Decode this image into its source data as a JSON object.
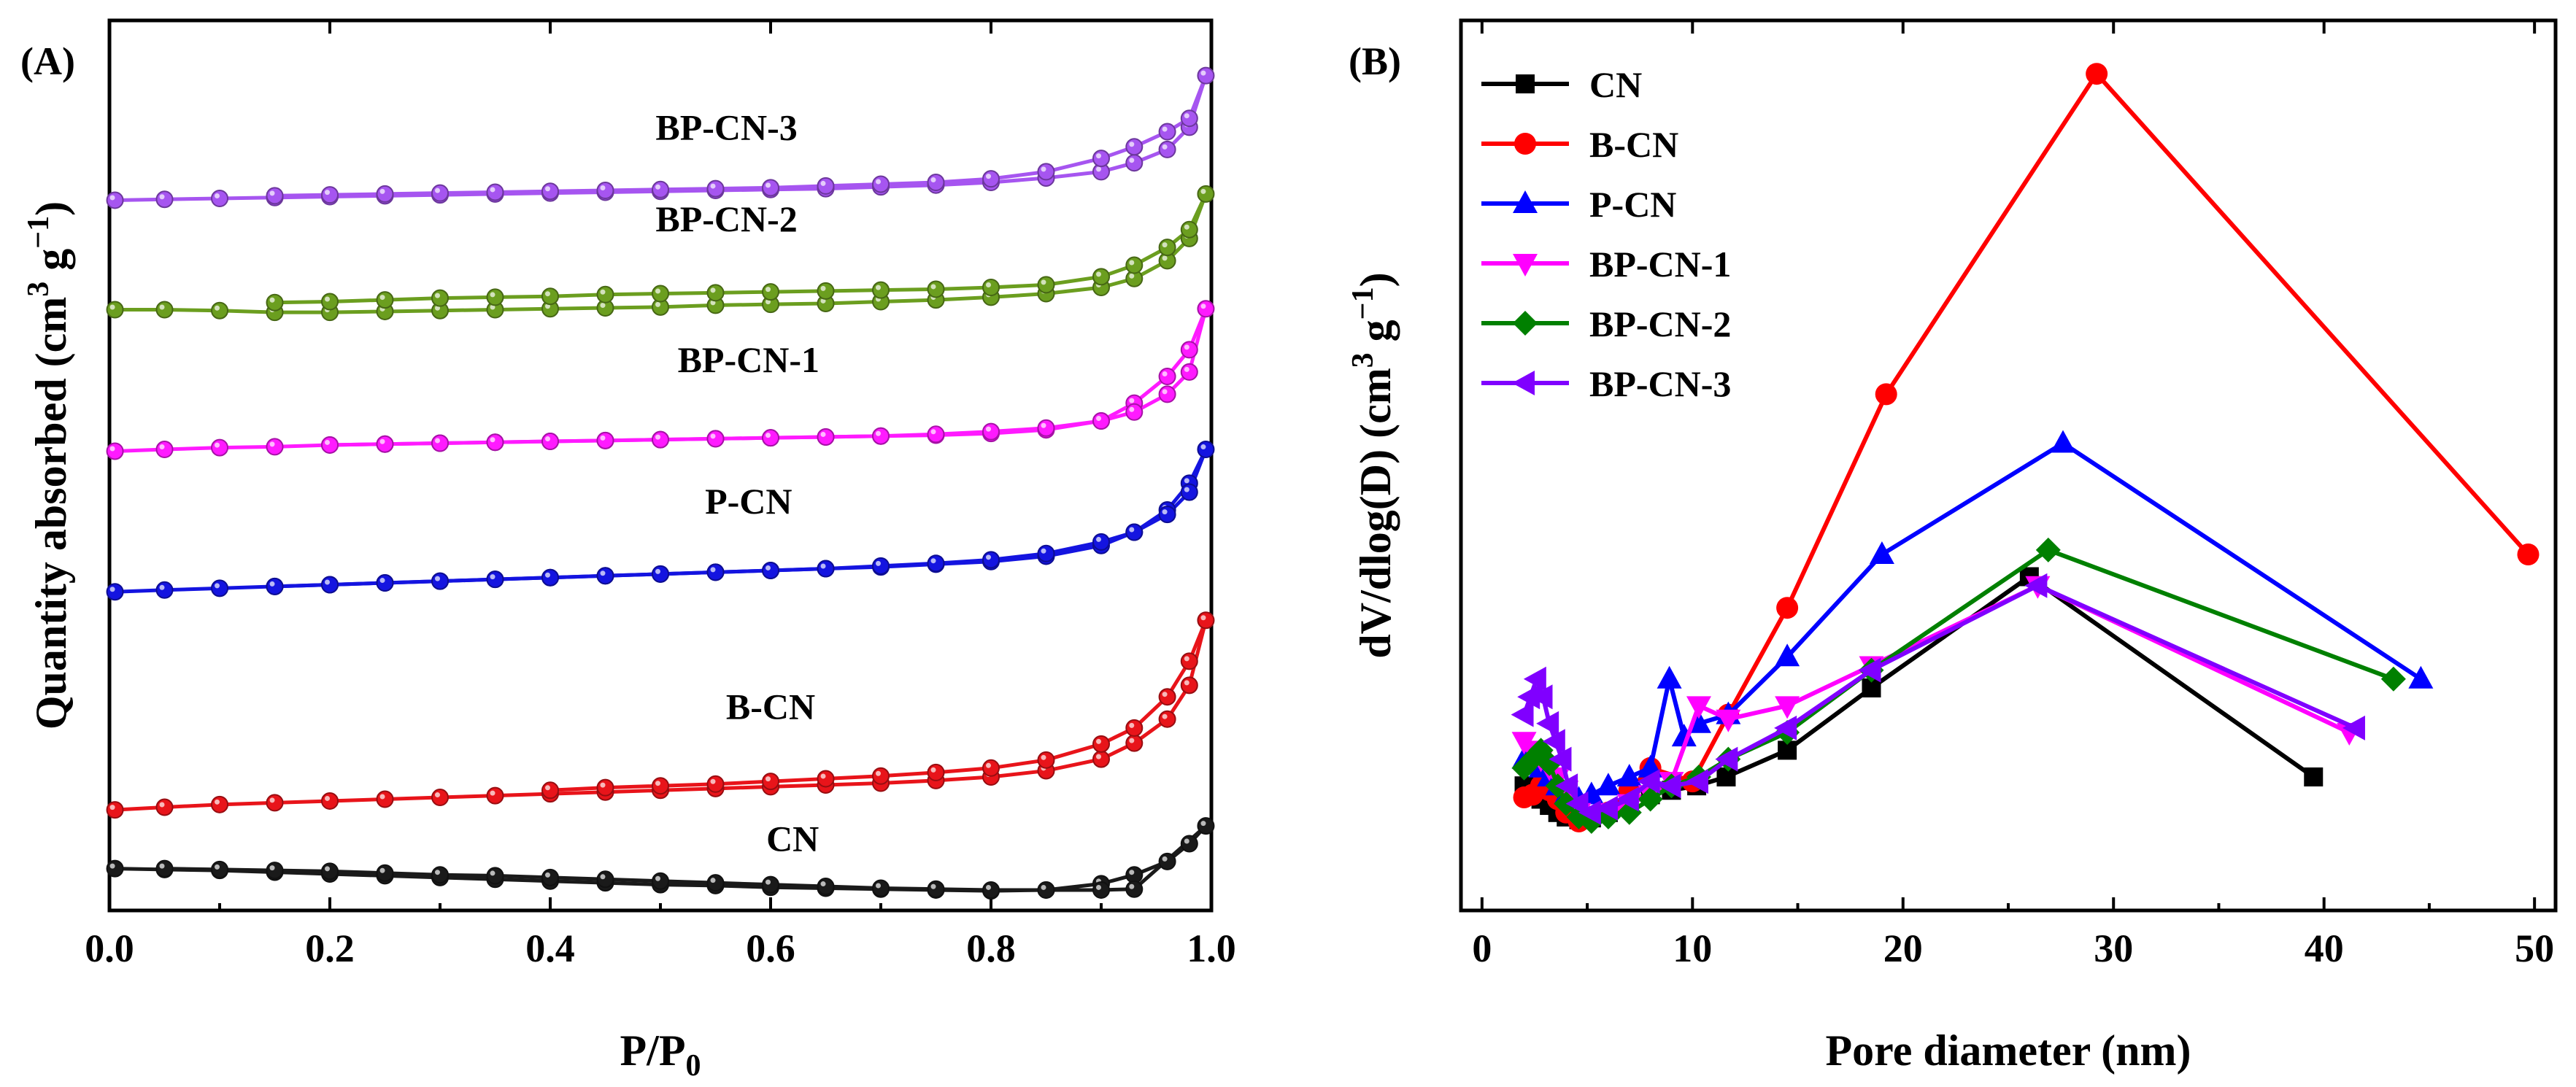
{
  "chart_data": [
    {
      "panel_label": "(A)",
      "type": "line",
      "title": "",
      "xlabel": {
        "main": "P/P",
        "sub": "0"
      },
      "ylabel": {
        "main": "Quantity absorbed (cm",
        "sup1": "3",
        "mid": " g",
        "sup2": "−1",
        "end": ")"
      },
      "xlim": [
        0,
        1
      ],
      "ylim": [
        0,
        100
      ],
      "yticks_shown": false,
      "xtick_labels": [
        "0.0",
        "0.2",
        "0.4",
        "0.6",
        "0.8",
        "1.0"
      ],
      "xtick_values": [
        0,
        0.2,
        0.4,
        0.6,
        0.8,
        1.0
      ],
      "marker": "ball",
      "series": [
        {
          "name": "CN",
          "label": "CN",
          "color": "#1a1a1a",
          "label_at": [
            0.62,
            6.7
          ],
          "x": [
            0.005,
            0.05,
            0.1,
            0.15,
            0.2,
            0.25,
            0.3,
            0.35,
            0.4,
            0.45,
            0.5,
            0.55,
            0.6,
            0.65,
            0.7,
            0.75,
            0.8,
            0.85,
            0.9,
            0.93,
            0.96,
            0.98,
            0.995
          ],
          "y": [
            4.7,
            4.6,
            4.5,
            4.3,
            4.1,
            3.9,
            3.7,
            3.5,
            3.3,
            3.1,
            2.9,
            2.8,
            2.6,
            2.5,
            2.4,
            2.3,
            2.2,
            2.3,
            3.0,
            4.0,
            5.5,
            7.5,
            9.5
          ],
          "desorption_x": [
            0.93,
            0.9,
            0.85,
            0.8,
            0.75,
            0.7,
            0.65,
            0.6,
            0.55,
            0.5,
            0.45,
            0.4,
            0.35,
            0.3,
            0.25,
            0.2,
            0.15,
            0.1,
            0.05
          ],
          "desorption_y": [
            2.4,
            2.3,
            2.3,
            2.3,
            2.4,
            2.5,
            2.7,
            2.9,
            3.1,
            3.3,
            3.5,
            3.7,
            3.9,
            4.0,
            4.2,
            4.4,
            4.5,
            4.6,
            4.7
          ]
        },
        {
          "name": "B-CN",
          "label": "B-CN",
          "color": "#e8141a",
          "label_at": [
            0.6,
            21.5
          ],
          "x": [
            0.005,
            0.05,
            0.1,
            0.15,
            0.2,
            0.25,
            0.3,
            0.35,
            0.4,
            0.45,
            0.5,
            0.55,
            0.6,
            0.65,
            0.7,
            0.75,
            0.8,
            0.85,
            0.9,
            0.93,
            0.96,
            0.98,
            0.995
          ],
          "y": [
            11.3,
            11.6,
            11.9,
            12.1,
            12.3,
            12.5,
            12.7,
            12.9,
            13.1,
            13.3,
            13.5,
            13.7,
            13.9,
            14.1,
            14.3,
            14.6,
            15.0,
            15.7,
            17.0,
            18.8,
            21.5,
            25.3,
            32.6
          ],
          "desorption_x": [
            0.98,
            0.96,
            0.93,
            0.9,
            0.85,
            0.8,
            0.75,
            0.7,
            0.65,
            0.6,
            0.55,
            0.5,
            0.45,
            0.4
          ],
          "desorption_y": [
            28.0,
            24.0,
            20.5,
            18.7,
            16.9,
            16.0,
            15.5,
            15.1,
            14.8,
            14.5,
            14.2,
            14.0,
            13.8,
            13.5
          ]
        },
        {
          "name": "P-CN",
          "label": "P-CN",
          "color": "#1414e0",
          "label_at": [
            0.58,
            44.6
          ],
          "x": [
            0.005,
            0.05,
            0.1,
            0.15,
            0.2,
            0.25,
            0.3,
            0.35,
            0.4,
            0.45,
            0.5,
            0.55,
            0.6,
            0.65,
            0.7,
            0.75,
            0.8,
            0.85,
            0.9,
            0.93,
            0.96,
            0.98,
            0.995
          ],
          "y": [
            35.8,
            36.0,
            36.2,
            36.4,
            36.6,
            36.8,
            37.0,
            37.2,
            37.4,
            37.6,
            37.8,
            38.0,
            38.2,
            38.4,
            38.6,
            38.9,
            39.2,
            39.8,
            41.0,
            42.5,
            45.0,
            48.0,
            51.8
          ],
          "desorption_x": [
            0.98,
            0.96,
            0.93,
            0.9,
            0.85,
            0.8,
            0.75,
            0.7,
            0.65,
            0.6,
            0.55,
            0.5,
            0.45,
            0.4,
            0.35,
            0.3,
            0.25,
            0.2,
            0.15
          ],
          "desorption_y": [
            47.0,
            44.5,
            42.5,
            41.4,
            40.1,
            39.4,
            39.0,
            38.7,
            38.4,
            38.2,
            38.0,
            37.8,
            37.6,
            37.4,
            37.2,
            37.0,
            36.8,
            36.6,
            36.4
          ]
        },
        {
          "name": "BP-CN-1",
          "label": "BP-CN-1",
          "color": "#ff1aff",
          "label_at": [
            0.58,
            60.5
          ],
          "x": [
            0.005,
            0.05,
            0.1,
            0.15,
            0.2,
            0.25,
            0.3,
            0.35,
            0.4,
            0.45,
            0.5,
            0.55,
            0.6,
            0.65,
            0.7,
            0.75,
            0.8,
            0.85,
            0.9,
            0.93,
            0.96,
            0.98,
            0.995
          ],
          "y": [
            51.6,
            51.8,
            52.0,
            52.1,
            52.3,
            52.4,
            52.5,
            52.6,
            52.7,
            52.8,
            52.9,
            53.0,
            53.1,
            53.2,
            53.3,
            53.4,
            53.6,
            54.0,
            55.0,
            57.0,
            60.0,
            63.0,
            67.6
          ],
          "desorption_x": [
            0.98,
            0.96,
            0.93,
            0.9,
            0.85,
            0.8,
            0.75,
            0.7,
            0.65,
            0.6,
            0.55,
            0.5,
            0.45,
            0.4,
            0.35,
            0.3,
            0.25,
            0.2
          ],
          "desorption_y": [
            60.5,
            58.0,
            56.0,
            55.0,
            54.2,
            53.8,
            53.5,
            53.3,
            53.2,
            53.1,
            53.0,
            52.9,
            52.8,
            52.7,
            52.6,
            52.5,
            52.4,
            52.3
          ]
        },
        {
          "name": "BP-CN-2",
          "label": "BP-CN-2",
          "color": "#6b9e1f",
          "label_at": [
            0.56,
            76.3
          ],
          "x": [
            0.005,
            0.05,
            0.1,
            0.15,
            0.2,
            0.25,
            0.3,
            0.35,
            0.4,
            0.45,
            0.5,
            0.55,
            0.6,
            0.65,
            0.7,
            0.75,
            0.8,
            0.85,
            0.9,
            0.93,
            0.96,
            0.98,
            0.995
          ],
          "y": [
            67.5,
            67.5,
            67.4,
            67.2,
            67.2,
            67.3,
            67.4,
            67.5,
            67.6,
            67.7,
            67.8,
            68.0,
            68.1,
            68.2,
            68.4,
            68.6,
            68.9,
            69.3,
            70.0,
            71.0,
            73.0,
            75.5,
            80.5
          ],
          "desorption_x": [
            0.98,
            0.96,
            0.93,
            0.9,
            0.85,
            0.8,
            0.75,
            0.7,
            0.65,
            0.6,
            0.55,
            0.5,
            0.45,
            0.4,
            0.35,
            0.3,
            0.25,
            0.2,
            0.15
          ],
          "desorption_y": [
            76.5,
            74.5,
            72.5,
            71.2,
            70.3,
            70.0,
            69.8,
            69.7,
            69.6,
            69.5,
            69.4,
            69.3,
            69.2,
            69.0,
            68.9,
            68.8,
            68.6,
            68.4,
            68.3
          ]
        },
        {
          "name": "BP-CN-3",
          "label": "BP-CN-3",
          "color": "#a655f0",
          "label_at": [
            0.56,
            86.6
          ],
          "x": [
            0.005,
            0.05,
            0.1,
            0.15,
            0.2,
            0.25,
            0.3,
            0.35,
            0.4,
            0.45,
            0.5,
            0.55,
            0.6,
            0.65,
            0.7,
            0.75,
            0.8,
            0.85,
            0.9,
            0.93,
            0.96,
            0.98,
            0.995
          ],
          "y": [
            79.8,
            79.9,
            80.0,
            80.1,
            80.2,
            80.3,
            80.4,
            80.5,
            80.6,
            80.7,
            80.8,
            80.9,
            81.0,
            81.1,
            81.3,
            81.5,
            81.8,
            82.3,
            83.0,
            84.0,
            85.5,
            88.0,
            93.8
          ],
          "desorption_x": [
            0.98,
            0.96,
            0.93,
            0.9,
            0.85,
            0.8,
            0.75,
            0.7,
            0.65,
            0.6,
            0.55,
            0.5,
            0.45,
            0.4,
            0.35,
            0.3,
            0.25,
            0.2,
            0.15
          ],
          "desorption_y": [
            89.0,
            87.5,
            85.8,
            84.5,
            83.0,
            82.2,
            81.8,
            81.6,
            81.4,
            81.2,
            81.1,
            81.0,
            80.9,
            80.8,
            80.7,
            80.6,
            80.5,
            80.4,
            80.3
          ]
        }
      ]
    },
    {
      "panel_label": "(B)",
      "type": "line",
      "title": "",
      "xlabel": {
        "main": "Pore diameter (nm)"
      },
      "ylabel": {
        "main": "dV/dlog(D) (cm",
        "sup1": "3",
        "mid": " g",
        "sup2": "−1",
        "end": ")"
      },
      "xlim": [
        -1,
        51
      ],
      "ylim": [
        0,
        100
      ],
      "yticks_shown": false,
      "xtick_labels": [
        "0",
        "10",
        "20",
        "30",
        "40",
        "50"
      ],
      "xtick_values": [
        0,
        10,
        20,
        30,
        40,
        50
      ],
      "legend_position": "top-left",
      "series": [
        {
          "name": "CN",
          "label": "CN",
          "color": "#000000",
          "marker": "square",
          "x": [
            2.0,
            2.4,
            2.8,
            3.2,
            3.6,
            4.0,
            4.6,
            5.2,
            6.0,
            7.0,
            8.0,
            9.0,
            10.2,
            11.6,
            14.5,
            18.5,
            26.0,
            39.5
          ],
          "y": [
            14.0,
            13.5,
            12.5,
            11.8,
            11.0,
            10.5,
            10.2,
            10.4,
            11.0,
            12.0,
            13.0,
            13.5,
            14.0,
            15.0,
            18.0,
            25.0,
            37.5,
            15.0
          ]
        },
        {
          "name": "B-CN",
          "label": "B-CN",
          "color": "#ff0000",
          "marker": "circle",
          "x": [
            2.0,
            2.4,
            2.8,
            3.2,
            3.6,
            4.0,
            4.6,
            5.2,
            6.0,
            7.0,
            8.0,
            10.0,
            11.7,
            14.5,
            19.2,
            29.2,
            49.7
          ],
          "y": [
            12.7,
            13.0,
            14.0,
            13.5,
            12.5,
            11.0,
            10.0,
            10.5,
            11.0,
            13.5,
            16.0,
            14.5,
            22.0,
            34.0,
            58.0,
            94.0,
            40.0
          ]
        },
        {
          "name": "P-CN",
          "label": "P-CN",
          "color": "#0000ff",
          "marker": "triangle-up",
          "x": [
            2.0,
            2.4,
            2.8,
            3.2,
            3.6,
            4.0,
            4.6,
            5.2,
            6.0,
            7.0,
            8.0,
            8.9,
            9.6,
            10.3,
            11.7,
            14.5,
            19.0,
            27.6,
            44.6
          ],
          "y": [
            17.0,
            16.5,
            16.0,
            15.0,
            14.0,
            13.0,
            12.5,
            13.0,
            14.0,
            15.0,
            16.0,
            26.0,
            19.5,
            21.0,
            22.0,
            28.5,
            40.0,
            52.5,
            26.0
          ]
        },
        {
          "name": "BP-CN-1",
          "label": "BP-CN-1",
          "color": "#ff00ff",
          "marker": "triangle-down",
          "x": [
            2.0,
            2.4,
            2.8,
            3.2,
            3.6,
            4.0,
            4.6,
            5.2,
            6.0,
            7.0,
            8.0,
            9.0,
            10.3,
            11.7,
            14.5,
            18.5,
            26.4,
            41.2
          ],
          "y": [
            19.0,
            18.0,
            17.0,
            16.0,
            15.0,
            13.5,
            11.0,
            10.5,
            11.0,
            12.0,
            13.0,
            14.5,
            23.0,
            21.5,
            23.0,
            27.5,
            36.5,
            20.0
          ]
        },
        {
          "name": "BP-CN-2",
          "label": "BP-CN-2",
          "color": "#008000",
          "marker": "diamond",
          "x": [
            2.0,
            2.4,
            2.8,
            3.2,
            3.6,
            4.0,
            4.6,
            5.2,
            6.0,
            7.0,
            8.0,
            9.0,
            10.3,
            11.7,
            14.5,
            18.5,
            26.9,
            43.3
          ],
          "y": [
            16.0,
            17.0,
            18.0,
            16.5,
            14.0,
            12.0,
            10.5,
            10.0,
            10.5,
            11.0,
            12.5,
            14.0,
            15.0,
            17.0,
            20.0,
            27.0,
            40.5,
            26.0
          ]
        },
        {
          "name": "BP-CN-3",
          "label": "BP-CN-3",
          "color": "#8000ff",
          "marker": "triangle-left",
          "x": [
            2.0,
            2.3,
            2.6,
            2.9,
            3.2,
            3.5,
            3.8,
            4.1,
            4.6,
            5.2,
            6.0,
            7.0,
            8.0,
            9.0,
            10.3,
            11.7,
            14.5,
            18.5,
            26.4,
            41.5
          ],
          "y": [
            22.0,
            24.0,
            26.0,
            24.0,
            21.0,
            19.0,
            17.0,
            14.0,
            12.0,
            11.0,
            11.5,
            12.5,
            14.5,
            14.0,
            14.5,
            17.0,
            20.5,
            27.0,
            36.5,
            20.5
          ]
        }
      ]
    }
  ]
}
